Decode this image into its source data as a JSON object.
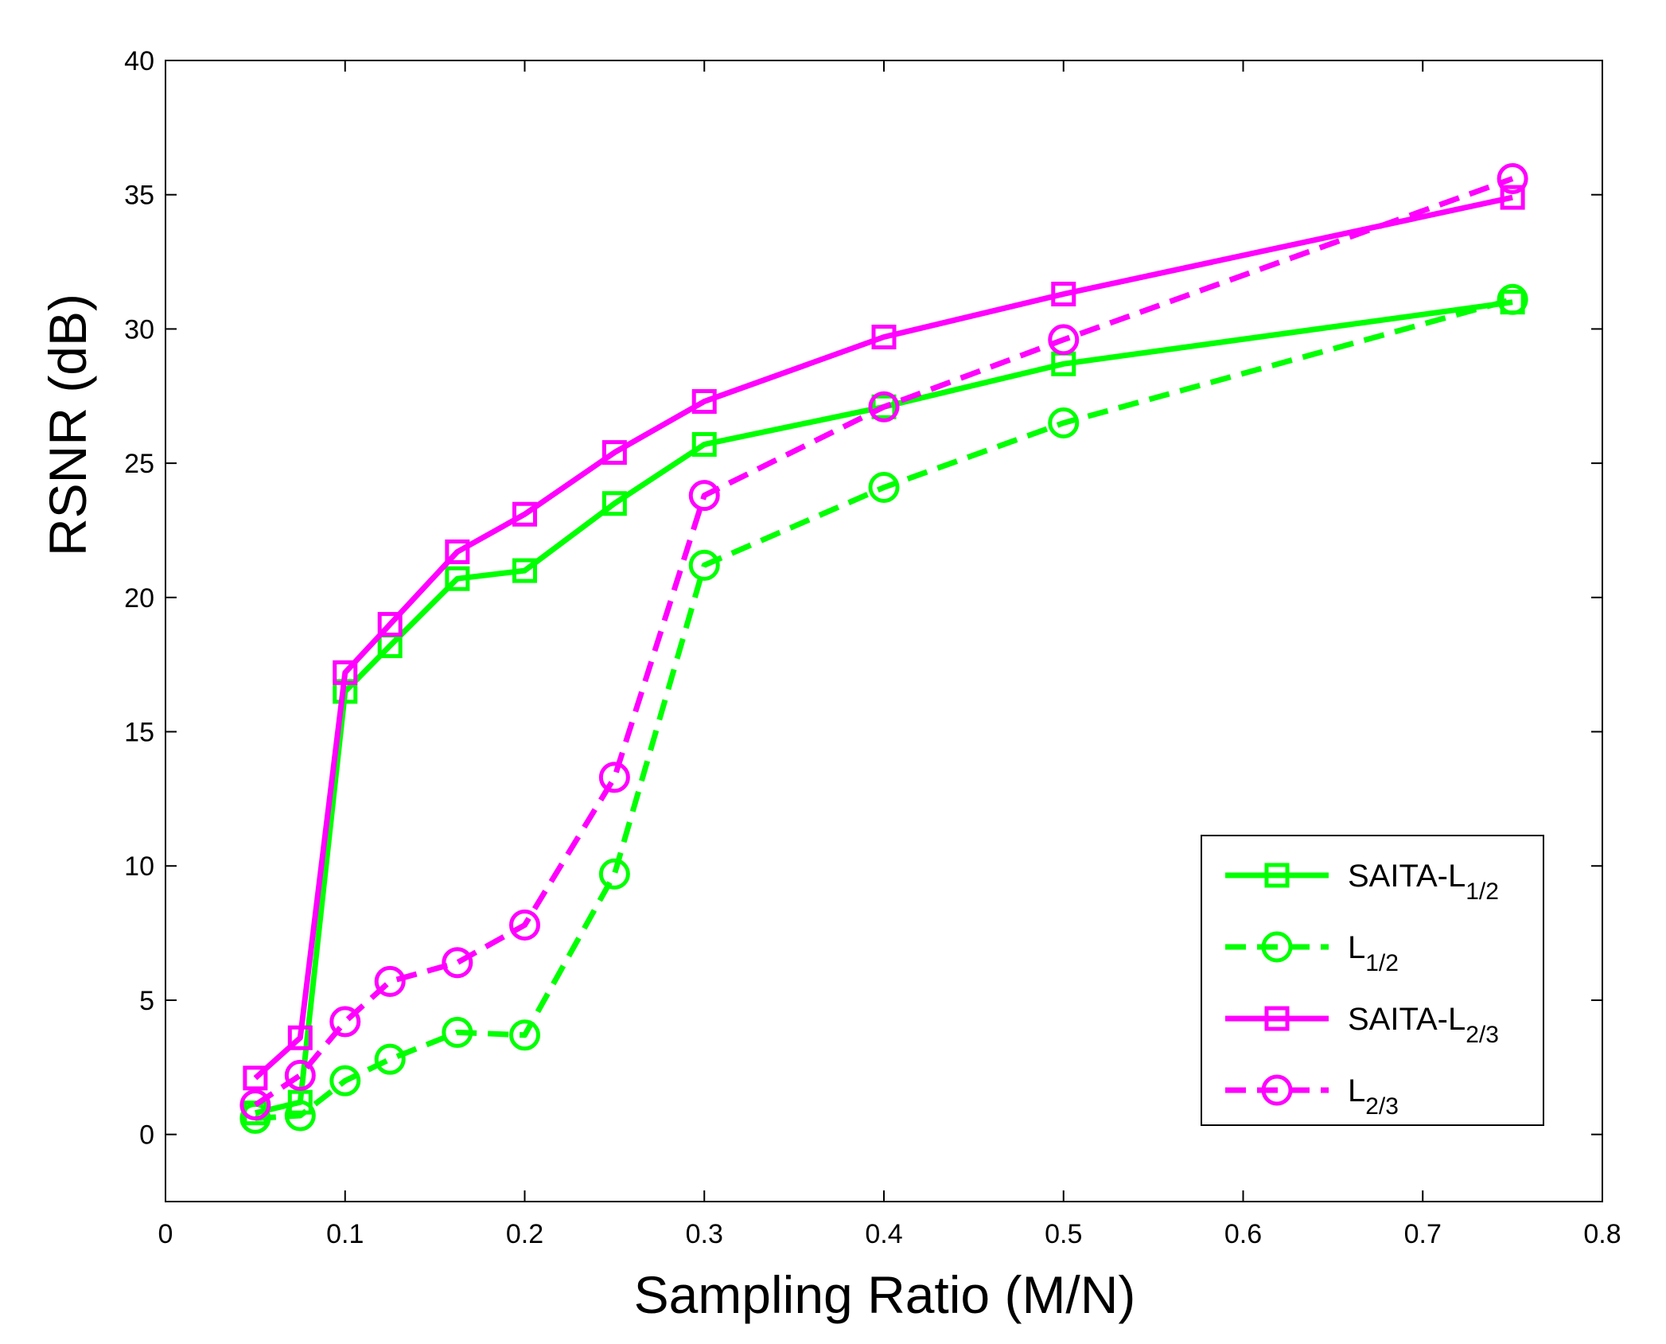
{
  "chart_data": {
    "type": "line",
    "title": "",
    "xlabel": "Sampling Ratio (M/N)",
    "ylabel": "RSNR (dB)",
    "xlim": [
      0,
      0.8
    ],
    "ylim": [
      -2.5,
      40
    ],
    "xticks": [
      0,
      0.1,
      0.2,
      0.3,
      0.4,
      0.5,
      0.6,
      0.7,
      0.8
    ],
    "xtick_labels": [
      "0",
      "0.1",
      "0.2",
      "0.3",
      "0.4",
      "0.5",
      "0.6",
      "0.7",
      "0.8"
    ],
    "yticks": [
      0,
      5,
      10,
      15,
      20,
      25,
      30,
      35,
      40
    ],
    "ytick_labels": [
      "0",
      "5",
      "10",
      "15",
      "20",
      "25",
      "30",
      "35",
      "40"
    ],
    "grid": false,
    "legend_position": "bottom-right",
    "x": [
      0.05,
      0.075,
      0.1,
      0.125,
      0.1625,
      0.2,
      0.25,
      0.3,
      0.4,
      0.5,
      0.75
    ],
    "series": [
      {
        "name": "SAITA-L1/2",
        "label_main": "SAITA-L",
        "label_sub": "1/2",
        "color": "#00ff00",
        "line": "solid",
        "marker": "square",
        "values": [
          0.8,
          1.2,
          16.5,
          18.2,
          20.7,
          21.0,
          23.5,
          25.7,
          27.1,
          28.7,
          31.0
        ]
      },
      {
        "name": "L1/2",
        "label_main": "L",
        "label_sub": "1/2",
        "color": "#00ff00",
        "line": "dashed",
        "marker": "circle",
        "values": [
          0.6,
          0.7,
          2.0,
          2.8,
          3.8,
          3.7,
          9.7,
          21.2,
          24.1,
          26.5,
          31.1
        ]
      },
      {
        "name": "SAITA-L2/3",
        "label_main": "SAITA-L",
        "label_sub": "2/3",
        "color": "#ff00ff",
        "line": "solid",
        "marker": "square",
        "values": [
          2.1,
          3.6,
          17.2,
          19.0,
          21.7,
          23.1,
          25.4,
          27.3,
          29.7,
          31.3,
          34.9
        ]
      },
      {
        "name": "L2/3",
        "label_main": "L",
        "label_sub": "2/3",
        "color": "#ff00ff",
        "line": "dashed",
        "marker": "circle",
        "values": [
          1.1,
          2.2,
          4.2,
          5.7,
          6.4,
          7.8,
          13.3,
          23.8,
          27.1,
          29.6,
          35.6
        ]
      }
    ]
  }
}
